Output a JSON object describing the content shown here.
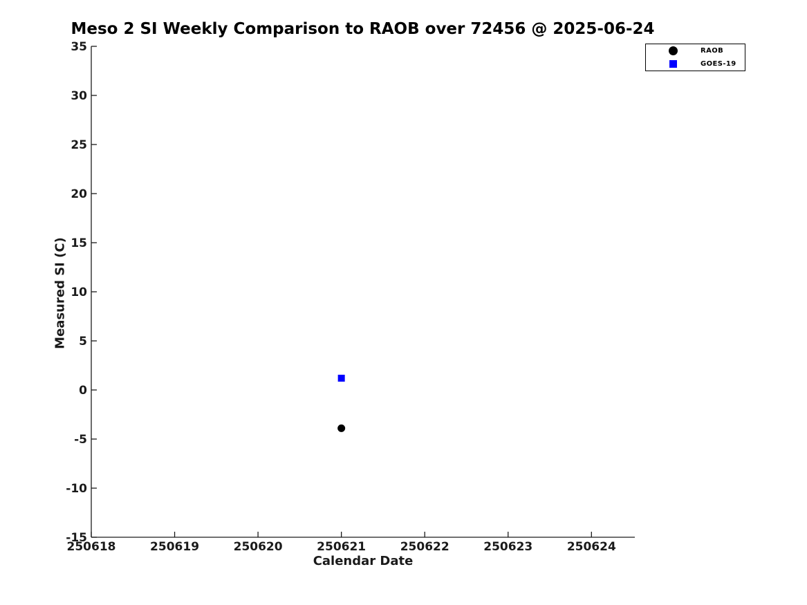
{
  "figure": {
    "background": "#ffffff",
    "title_color": "#000000",
    "axis_text_color": "#1a1a1a"
  },
  "chart_data": {
    "type": "scatter",
    "title": "Meso 2 SI Weekly Comparison to RAOB over 72456 @ 2025-06-24",
    "xlabel": "Calendar Date",
    "ylabel": "Measured SI (C)",
    "xlim": [
      250618,
      250624.52
    ],
    "ylim": [
      -15,
      35
    ],
    "x_ticks": [
      250618,
      250619,
      250620,
      250621,
      250622,
      250623,
      250624
    ],
    "y_ticks": [
      35,
      30,
      25,
      20,
      15,
      10,
      5,
      0,
      -5,
      -10,
      -15
    ],
    "grid": false,
    "axis_color": "#1a1a1a",
    "legend": {
      "position": "top-right",
      "entries": [
        "RAOB",
        "GOES-19"
      ]
    },
    "series": [
      {
        "name": "RAOB",
        "marker": "circle",
        "color": "#000000",
        "marker_size": 11,
        "points": [
          {
            "x": 250621,
            "y": -3.9
          }
        ]
      },
      {
        "name": "GOES-19",
        "marker": "square",
        "color": "#0000ff",
        "marker_size": 10,
        "points": [
          {
            "x": 250621,
            "y": 1.2
          }
        ]
      }
    ]
  }
}
